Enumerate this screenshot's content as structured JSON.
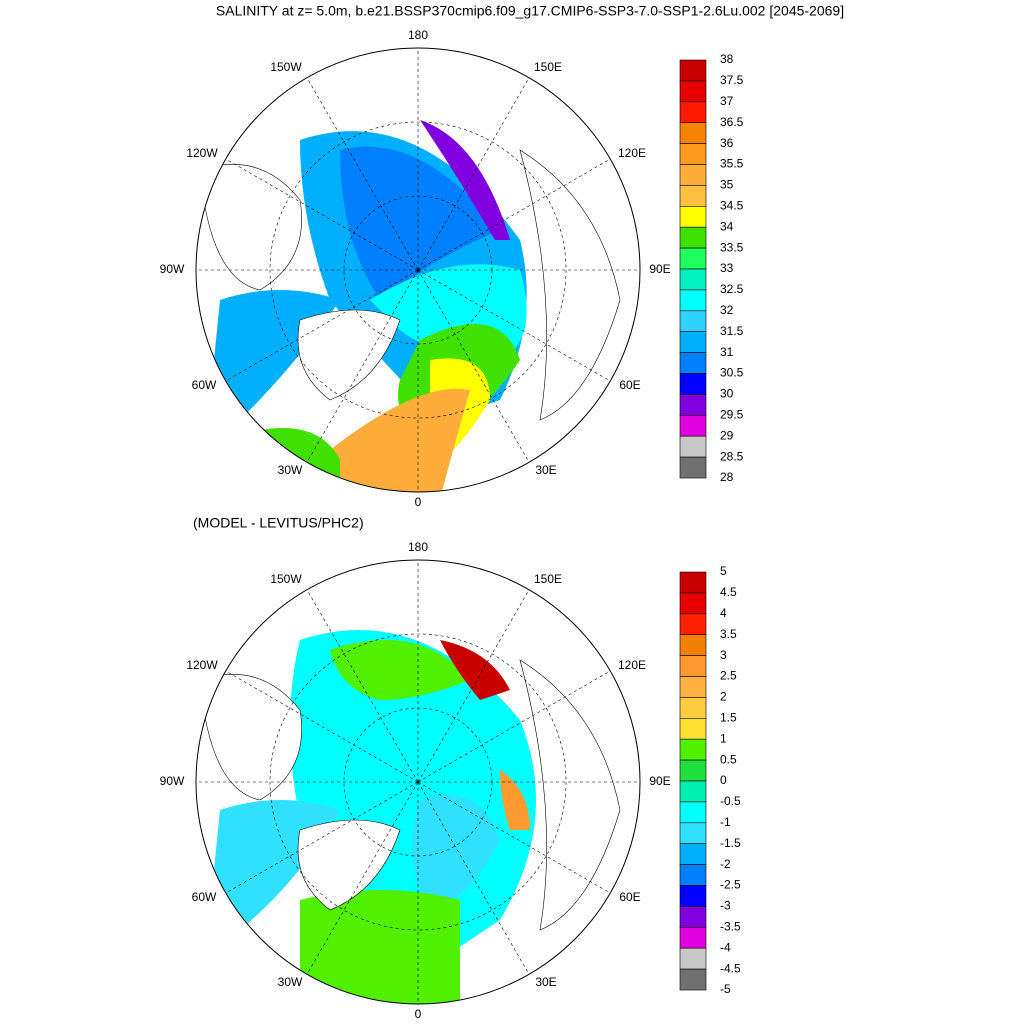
{
  "title": "SALINITY at z=   5.0m, b.e21.BSSP370cmip6.f09_g17.CMIP6-SSP3-7.0-SSP1-2.6Lu.002 [2045-2069]",
  "maps": [
    {
      "lon_labels": [
        "180",
        "150E",
        "120E",
        "90E",
        "60E",
        "30E",
        "0",
        "30W",
        "60W",
        "90W",
        "120W",
        "150W"
      ],
      "colorbar": {
        "levels": [
          38,
          37.5,
          37,
          36.5,
          36,
          35.5,
          35,
          34.5,
          34,
          33.5,
          33,
          32.5,
          32,
          31.5,
          31,
          30.5,
          30,
          29.5,
          29,
          28.5,
          28
        ],
        "colors": [
          "#c80000",
          "#e60000",
          "#ff1a00",
          "#f58200",
          "#ff9a20",
          "#ffad3a",
          "#ffc040",
          "#ffff00",
          "#40e000",
          "#20ff60",
          "#00f0c0",
          "#00ffff",
          "#30d0ff",
          "#00b0ff",
          "#0080ff",
          "#0000ff",
          "#8000e0",
          "#e000e0",
          "#c8c8c8",
          "#707070"
        ]
      }
    },
    {
      "subtitle": "(MODEL - LEVITUS/PHC2)",
      "lon_labels": [
        "180",
        "150E",
        "120E",
        "90E",
        "60E",
        "30E",
        "0",
        "30W",
        "60W",
        "90W",
        "120W",
        "150W"
      ],
      "colorbar": {
        "levels": [
          5,
          4.5,
          4,
          3.5,
          3,
          2.5,
          2,
          1.5,
          1,
          0.5,
          0,
          -0.5,
          -1,
          -1.5,
          -2,
          -2.5,
          -3,
          -3.5,
          -4,
          -4.5,
          -5
        ],
        "colors": [
          "#c80000",
          "#e60000",
          "#ff2000",
          "#f08000",
          "#ff9a30",
          "#ffb040",
          "#ffcc40",
          "#ffe030",
          "#50f000",
          "#20e040",
          "#00f0b0",
          "#00ffff",
          "#30e0ff",
          "#00b0ff",
          "#0080ff",
          "#0000ff",
          "#8000e0",
          "#e000e0",
          "#c8c8c8",
          "#707070"
        ]
      }
    }
  ]
}
